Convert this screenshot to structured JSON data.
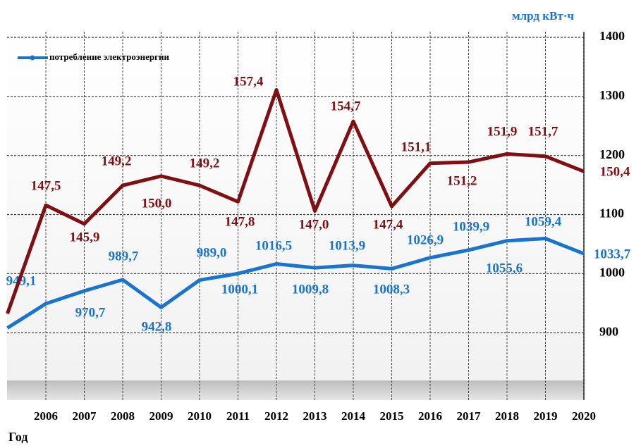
{
  "chart_data": {
    "type": "line",
    "y_axis_label": "млрд кВт·ч",
    "x_axis_label": "Год",
    "categories": [
      null,
      "2006",
      "2007",
      "2008",
      "2009",
      "2010",
      "2011",
      "2012",
      "2013",
      "2014",
      "2015",
      "2016",
      "2017",
      "2018",
      "2019",
      "2020"
    ],
    "ylim": [
      800,
      1400
    ],
    "yticks": [
      900,
      1000,
      1100,
      1200,
      1300,
      1400
    ],
    "y2lim": [
      131.5,
      161.9
    ],
    "grid": true,
    "legend": "top-left",
    "series": [
      {
        "name": "потребление электроэнергии",
        "color": "#1874cd",
        "values": [
          908,
          949.1,
          970.7,
          989.7,
          942.8,
          989.0,
          1000.1,
          1016.5,
          1009.8,
          1013.9,
          1008.3,
          1026.9,
          1039.9,
          1055.6,
          1059.4,
          1033.7
        ],
        "value_labels": [
          null,
          "949,1",
          "970,7",
          "989,7",
          "942,8",
          "989,0",
          "1000,1",
          "1016,5",
          "1009,8",
          "1013,9",
          "1008,3",
          "1026,9",
          "1039,9",
          "1055,6",
          "1059,4",
          "1033,7"
        ]
      },
      {
        "color": "#7f0f12",
        "axis": "y2",
        "values": [
          138.2,
          147.5,
          145.9,
          149.2,
          150.0,
          149.2,
          147.8,
          157.4,
          147.0,
          154.7,
          147.4,
          151.1,
          151.2,
          151.9,
          151.7,
          150.4
        ],
        "value_labels": [
          null,
          "147,5",
          "145,9",
          "149,2",
          "150,0",
          "149,2",
          "147,8",
          "157,4",
          "147,0",
          "154,7",
          "147,4",
          "151,1",
          "151,2",
          "151,9",
          "151,7",
          "150,4"
        ]
      }
    ]
  }
}
